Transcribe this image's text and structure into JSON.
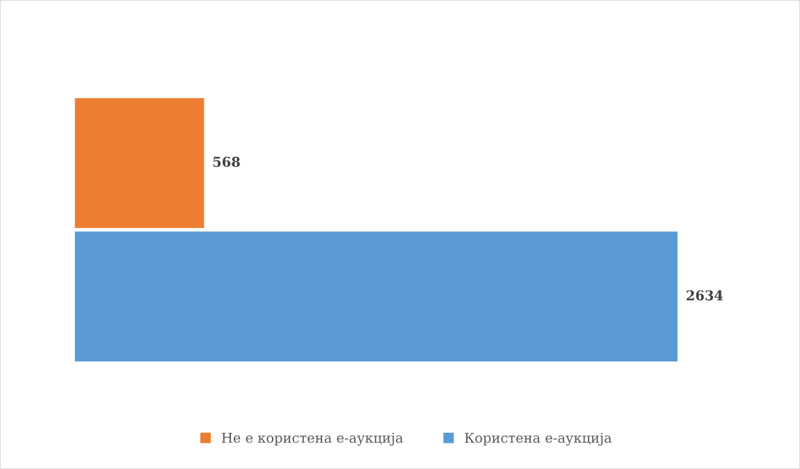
{
  "chart_data": {
    "type": "bar",
    "orientation": "horizontal",
    "categories": [
      null
    ],
    "series": [
      {
        "name": "Не е користена е-аукција",
        "color": "#ed7d31",
        "values": [
          568
        ]
      },
      {
        "name": "Користена е-аукција",
        "color": "#5b9bd5",
        "values": [
          2634
        ]
      }
    ],
    "data_labels": true,
    "legend": "bottom",
    "grid": false,
    "tick_labels": false
  }
}
